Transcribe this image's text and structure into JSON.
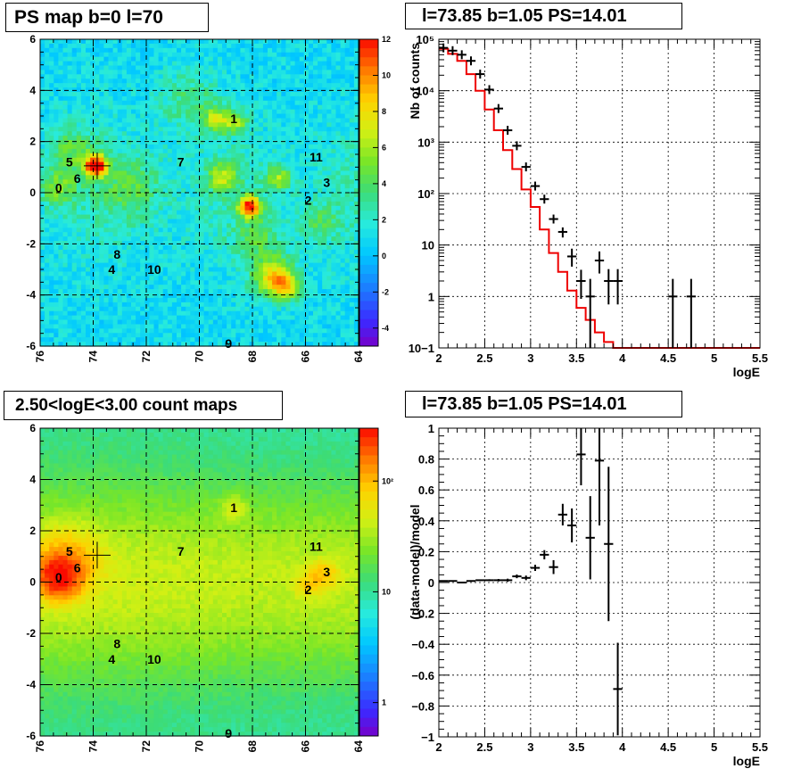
{
  "panels": {
    "ps_map": {
      "title": "PS map b=0 l=70"
    },
    "spectrum": {
      "title": "l=73.85 b=1.05 PS=14.01"
    },
    "count_map": {
      "title": "2.50<logE<3.00 count maps"
    },
    "residual": {
      "title": "l=73.85 b=1.05 PS=14.01"
    }
  },
  "chart_data": [
    {
      "id": "ps_map",
      "type": "heatmap",
      "title": "PS map b=0 l=70",
      "xlim": [
        76,
        64
      ],
      "ylim": [
        -6,
        6
      ],
      "xticks": [
        "76",
        "74",
        "72",
        "70",
        "68",
        "66",
        "64"
      ],
      "yticks": [
        "-6",
        "-4",
        "-2",
        "0",
        "2",
        "4",
        "6"
      ],
      "colorbar": {
        "range": [
          -5,
          12
        ],
        "ticks": [
          "-4",
          "-2",
          "0",
          "2",
          "4",
          "6",
          "8",
          "10",
          "12"
        ]
      },
      "grid": true,
      "marker": {
        "l": 73.85,
        "b": 1.05
      },
      "sources": [
        {
          "label": "0",
          "l": 75.3,
          "b": 0.2
        },
        {
          "label": "1",
          "l": 68.7,
          "b": 2.9
        },
        {
          "label": "2",
          "l": 65.9,
          "b": -0.3
        },
        {
          "label": "3",
          "l": 65.2,
          "b": 0.4
        },
        {
          "label": "4",
          "l": 73.3,
          "b": -3.0
        },
        {
          "label": "5",
          "l": 74.9,
          "b": 1.2
        },
        {
          "label": "6",
          "l": 74.6,
          "b": 0.55
        },
        {
          "label": "7",
          "l": 70.7,
          "b": 1.2
        },
        {
          "label": "8",
          "l": 73.1,
          "b": -2.4
        },
        {
          "label": "9",
          "l": 68.9,
          "b": -5.9
        },
        {
          "label": "10",
          "l": 71.7,
          "b": -3.0
        },
        {
          "label": "11",
          "l": 65.6,
          "b": 1.4
        }
      ],
      "hotspots": [
        {
          "l": 73.9,
          "b": 1.05,
          "amp": 11.5,
          "sigma": 0.3
        },
        {
          "l": 68.1,
          "b": -0.55,
          "amp": 10,
          "sigma": 0.3
        },
        {
          "l": 67.2,
          "b": -3.3,
          "amp": 7,
          "sigma": 0.55
        },
        {
          "l": 66.7,
          "b": -3.7,
          "amp": 5,
          "sigma": 0.35
        },
        {
          "l": 69.1,
          "b": 0.6,
          "amp": 4.5,
          "sigma": 0.4
        },
        {
          "l": 67.0,
          "b": 0.55,
          "amp": 4.5,
          "sigma": 0.35
        },
        {
          "l": 69.3,
          "b": 2.85,
          "amp": 5,
          "sigma": 0.35
        },
        {
          "l": 68.6,
          "b": 2.75,
          "amp": 4.5,
          "sigma": 0.3
        },
        {
          "l": 75.3,
          "b": 0.2,
          "amp": 3.5,
          "sigma": 0.5
        },
        {
          "l": 74.8,
          "b": 1.7,
          "amp": 3,
          "sigma": 0.6
        },
        {
          "l": 72.5,
          "b": 0.2,
          "amp": 2.5,
          "sigma": 0.8
        },
        {
          "l": 67.8,
          "b": -1.8,
          "amp": 2.5,
          "sigma": 0.6
        },
        {
          "l": 70.4,
          "b": 3.6,
          "amp": 2.5,
          "sigma": 0.8
        },
        {
          "l": 65.5,
          "b": -1.2,
          "amp": 2.5,
          "sigma": 0.5
        }
      ]
    },
    {
      "id": "spectrum",
      "type": "line",
      "title": "l=73.85 b=1.05 PS=14.01",
      "xlabel": "logE",
      "ylabel": "Nb of counts",
      "xlim": [
        2,
        5.5
      ],
      "ylim": [
        0.1,
        100000
      ],
      "log_y": true,
      "grid": true,
      "xticks": [
        "2",
        "2.5",
        "3",
        "3.5",
        "4",
        "4.5",
        "5",
        "5.5"
      ],
      "yticks": [
        "10−1",
        "1",
        "10",
        "10²",
        "10³",
        "10⁴",
        "10⁵"
      ],
      "model_bin_width": 0.1,
      "model_bins_start": 2.0,
      "model_values": [
        65000,
        52000,
        38000,
        21000,
        10000,
        4300,
        1700,
        700,
        300,
        120,
        55,
        20,
        7,
        3,
        1.3,
        0.6,
        0.35,
        0.2,
        0.13,
        0.1,
        0.1,
        0.1,
        0.1,
        0.1,
        0.1,
        0.1,
        0.1,
        0.1,
        0.1,
        0.1,
        0.1,
        0.1,
        0.1,
        0.1,
        0.1
      ],
      "data_points": [
        {
          "x": 2.05,
          "y": 68000,
          "lo": 68000,
          "hi": 68000
        },
        {
          "x": 2.15,
          "y": 60000,
          "lo": 60000,
          "hi": 60000
        },
        {
          "x": 2.25,
          "y": 50000,
          "lo": 50000,
          "hi": 50000
        },
        {
          "x": 2.35,
          "y": 38000,
          "lo": 38000,
          "hi": 38000
        },
        {
          "x": 2.45,
          "y": 21000,
          "lo": 21000,
          "hi": 21000
        },
        {
          "x": 2.55,
          "y": 10500,
          "lo": 10500,
          "hi": 10500
        },
        {
          "x": 2.65,
          "y": 4500,
          "lo": 4500,
          "hi": 4500
        },
        {
          "x": 2.75,
          "y": 1700,
          "lo": 1700,
          "hi": 1700
        },
        {
          "x": 2.85,
          "y": 850,
          "lo": 800,
          "hi": 900
        },
        {
          "x": 2.95,
          "y": 330,
          "lo": 310,
          "hi": 350
        },
        {
          "x": 3.05,
          "y": 140,
          "lo": 128,
          "hi": 152
        },
        {
          "x": 3.15,
          "y": 78,
          "lo": 70,
          "hi": 87
        },
        {
          "x": 3.25,
          "y": 32,
          "lo": 27,
          "hi": 38
        },
        {
          "x": 3.35,
          "y": 18,
          "lo": 14,
          "hi": 22
        },
        {
          "x": 3.45,
          "y": 6,
          "lo": 3.8,
          "hi": 8.5
        },
        {
          "x": 3.55,
          "y": 2,
          "lo": 0.9,
          "hi": 3.3
        },
        {
          "x": 3.65,
          "y": 1,
          "lo": 0.1,
          "hi": 2.2
        },
        {
          "x": 3.75,
          "y": 5,
          "lo": 2.8,
          "hi": 7.5
        },
        {
          "x": 3.85,
          "y": 2,
          "lo": 0.7,
          "hi": 3.4
        },
        {
          "x": 3.95,
          "y": 2,
          "lo": 0.7,
          "hi": 3.4
        },
        {
          "x": 4.55,
          "y": 1,
          "lo": 0.1,
          "hi": 2.2
        },
        {
          "x": 4.75,
          "y": 1,
          "lo": 0.1,
          "hi": 2.2
        }
      ]
    },
    {
      "id": "count_map",
      "type": "heatmap",
      "title": "2.50<logE<3.00 count maps",
      "xlim": [
        76,
        64
      ],
      "ylim": [
        -6,
        6
      ],
      "xticks": [
        "76",
        "74",
        "72",
        "70",
        "68",
        "66",
        "64"
      ],
      "yticks": [
        "-6",
        "-4",
        "-2",
        "0",
        "2",
        "4",
        "6"
      ],
      "colorbar": {
        "log": true,
        "range": [
          0.5,
          300
        ],
        "ticks": [
          "1",
          "10",
          "10²"
        ]
      },
      "grid": true,
      "marker": {
        "l": 73.85,
        "b": 1.05
      },
      "sources": [
        {
          "label": "0",
          "l": 75.3,
          "b": 0.2
        },
        {
          "label": "1",
          "l": 68.7,
          "b": 2.9
        },
        {
          "label": "2",
          "l": 65.9,
          "b": -0.3
        },
        {
          "label": "3",
          "l": 65.2,
          "b": 0.4
        },
        {
          "label": "4",
          "l": 73.3,
          "b": -3.0
        },
        {
          "label": "5",
          "l": 74.9,
          "b": 1.2
        },
        {
          "label": "6",
          "l": 74.6,
          "b": 0.55
        },
        {
          "label": "7",
          "l": 70.7,
          "b": 1.2
        },
        {
          "label": "8",
          "l": 73.1,
          "b": -2.4
        },
        {
          "label": "9",
          "l": 68.9,
          "b": -5.9
        },
        {
          "label": "10",
          "l": 71.7,
          "b": -3.0
        },
        {
          "label": "11",
          "l": 65.6,
          "b": 1.4
        }
      ]
    },
    {
      "id": "residual",
      "type": "scatter",
      "title": "l=73.85 b=1.05 PS=14.01",
      "xlabel": "logE",
      "ylabel": "(data-model)/model",
      "xlim": [
        2,
        5.5
      ],
      "ylim": [
        -1,
        1
      ],
      "grid": true,
      "xticks": [
        "2",
        "2.5",
        "3",
        "3.5",
        "4",
        "4.5",
        "5",
        "5.5"
      ],
      "yticks": [
        "−1",
        "−0.8",
        "−0.6",
        "−0.4",
        "−0.2",
        "0",
        "0.2",
        "0.4",
        "0.6",
        "0.8",
        "1"
      ],
      "points": [
        {
          "x": 2.05,
          "y": 0.01,
          "err": 0.003
        },
        {
          "x": 2.15,
          "y": 0.01,
          "err": 0.003
        },
        {
          "x": 2.25,
          "y": 0.0,
          "err": 0.003
        },
        {
          "x": 2.35,
          "y": 0.01,
          "err": 0.004
        },
        {
          "x": 2.45,
          "y": 0.015,
          "err": 0.005
        },
        {
          "x": 2.55,
          "y": 0.015,
          "err": 0.006
        },
        {
          "x": 2.65,
          "y": 0.015,
          "err": 0.008
        },
        {
          "x": 2.75,
          "y": 0.015,
          "err": 0.01
        },
        {
          "x": 2.85,
          "y": 0.04,
          "err": 0.012
        },
        {
          "x": 2.95,
          "y": 0.03,
          "err": 0.015
        },
        {
          "x": 3.05,
          "y": 0.095,
          "err": 0.02
        },
        {
          "x": 3.15,
          "y": 0.18,
          "err": 0.03
        },
        {
          "x": 3.25,
          "y": 0.1,
          "err": 0.045
        },
        {
          "x": 3.35,
          "y": 0.44,
          "err": 0.07
        },
        {
          "x": 3.45,
          "y": 0.37,
          "err": 0.11
        },
        {
          "x": 3.55,
          "y": 0.83,
          "err": 0.2
        },
        {
          "x": 3.65,
          "y": 0.29,
          "err": 0.27
        },
        {
          "x": 3.75,
          "y": 0.79,
          "err": 0.42
        },
        {
          "x": 3.85,
          "y": 0.25,
          "err": 0.5
        },
        {
          "x": 3.95,
          "y": -0.69,
          "err": 0.3
        }
      ]
    }
  ]
}
